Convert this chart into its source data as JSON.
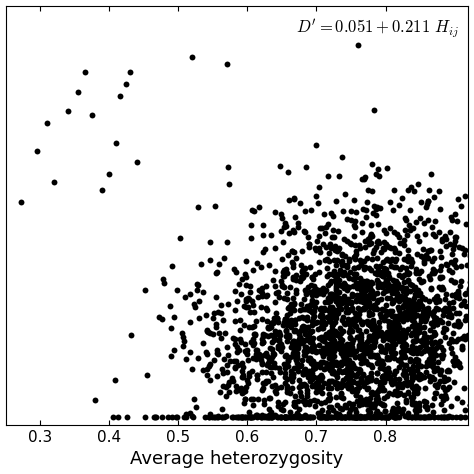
{
  "xlabel": "Average heterozygosity",
  "annotation_text": "$D^{\\prime} = 0.051 + 0.211\\ H_{ij}$",
  "xlim": [
    0.25,
    0.92
  ],
  "ylim": [
    -0.02,
    1.05
  ],
  "xticks": [
    0.3,
    0.4,
    0.5,
    0.6,
    0.7,
    0.8
  ],
  "background_color": "#ffffff",
  "point_color": "#000000",
  "point_size": 18,
  "seed": 42,
  "n_points": 2500,
  "intercept": 0.051,
  "slope": 0.211,
  "noise_std": 0.16,
  "xlabel_fontsize": 13,
  "tick_fontsize": 11,
  "annotation_fontsize": 12
}
